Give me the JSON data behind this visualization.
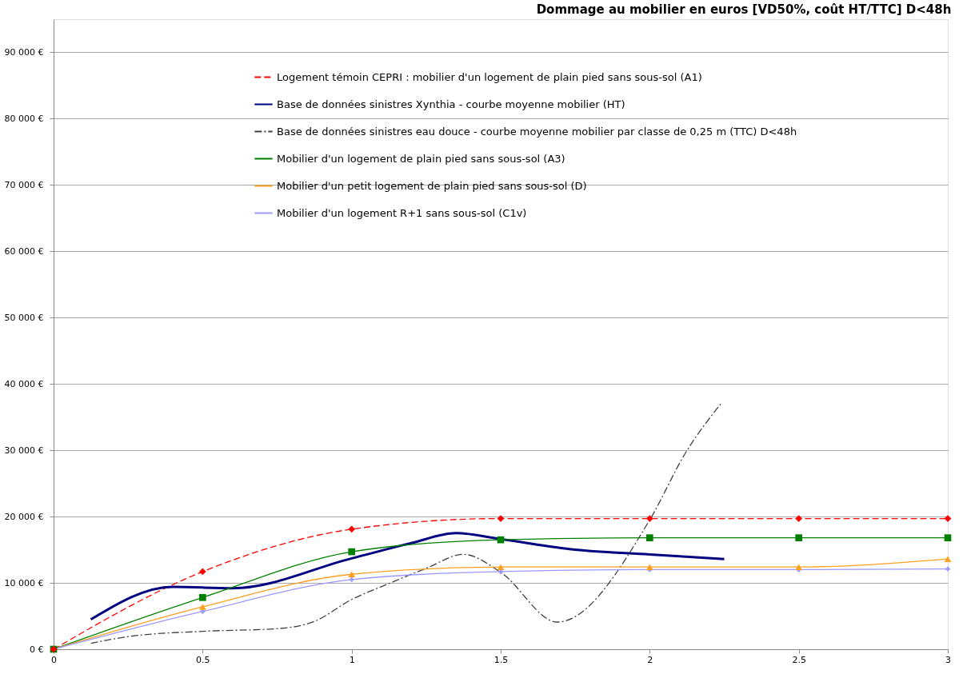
{
  "chart_data": {
    "type": "line",
    "title": "Dommage au mobilier en euros [VD50%, coût HT/TTC] D<48h",
    "xlim": [
      0,
      3
    ],
    "xticks": [
      0,
      0.5,
      1,
      1.5,
      2,
      2.5,
      3
    ],
    "ylim": [
      0,
      95000
    ],
    "yticks": [
      {
        "value": 0,
        "label": "0 €"
      },
      {
        "value": 10000,
        "label": "10 000 €"
      },
      {
        "value": 20000,
        "label": "20 000 €"
      },
      {
        "value": 30000,
        "label": "30 000 €"
      },
      {
        "value": 40000,
        "label": "40 000 €"
      },
      {
        "value": 50000,
        "label": "50 000 €"
      },
      {
        "value": 60000,
        "label": "60 000 €"
      },
      {
        "value": 70000,
        "label": "70 000 €"
      },
      {
        "value": 80000,
        "label": "80 000 €"
      },
      {
        "value": 90000,
        "label": "90 000 €"
      }
    ],
    "grid": "y",
    "legend": "top",
    "series": [
      {
        "name": "Logement témoin CEPRI : mobilier d'un logement de plain pied sans sous-sol (A1)",
        "color": "#ff0000",
        "marker": "diamond",
        "line_style": "dashed",
        "x": [
          0,
          0.5,
          1,
          1.5,
          2,
          2.5,
          3
        ],
        "values": [
          0,
          11700,
          18100,
          19700,
          19700,
          19700,
          19700
        ]
      },
      {
        "name": "Base de données sinistres Xynthia - courbe moyenne mobilier (HT)",
        "color": "#000080",
        "marker": "none",
        "line_style": "solid",
        "x": [
          0.125,
          0.4,
          0.6,
          1.0,
          1.2,
          1.35,
          1.5,
          1.75,
          2.0,
          2.25
        ],
        "values": [
          4500,
          9400,
          9200,
          13700,
          16000,
          17500,
          16600,
          15000,
          14300,
          13600
        ]
      },
      {
        "name": "Base de données sinistres eau douce - courbe moyenne mobilier par classe de 0,25 m (TTC) D<48h",
        "color": "#404040",
        "marker": "none",
        "line_style": "dashdot",
        "x": [
          0.125,
          0.25,
          0.5,
          0.75,
          0.875,
          1.0,
          1.125,
          1.25,
          1.375,
          1.5,
          1.69,
          2.0,
          2.12,
          2.24
        ],
        "values": [
          900,
          1900,
          2700,
          3100,
          4200,
          7500,
          9900,
          12200,
          14300,
          11600,
          4100,
          19500,
          29600,
          37100
        ]
      },
      {
        "name": "Mobilier d'un logement de plain pied sans sous-sol (A3)",
        "color": "#008000",
        "marker": "square",
        "line_style": "solid",
        "x": [
          0,
          0.5,
          1,
          1.5,
          2,
          2.5,
          3
        ],
        "values": [
          0,
          7800,
          14700,
          16500,
          16800,
          16800,
          16800
        ]
      },
      {
        "name": "Mobilier d'un petit logement de plain pied sans sous-sol (D)",
        "color": "#ffa020",
        "marker": "triangle",
        "line_style": "solid",
        "x": [
          0,
          0.5,
          1,
          1.5,
          2,
          2.5,
          3
        ],
        "values": [
          0,
          6400,
          11300,
          12400,
          12400,
          12400,
          13600
        ]
      },
      {
        "name": "Mobilier d'un logement R+1 sans sous-sol (C1v)",
        "color": "#9999ff",
        "marker": "cross",
        "line_style": "solid",
        "x": [
          0,
          0.5,
          1,
          1.5,
          2,
          2.5,
          3
        ],
        "values": [
          0,
          5700,
          10500,
          11700,
          12000,
          12000,
          12100
        ]
      }
    ]
  }
}
